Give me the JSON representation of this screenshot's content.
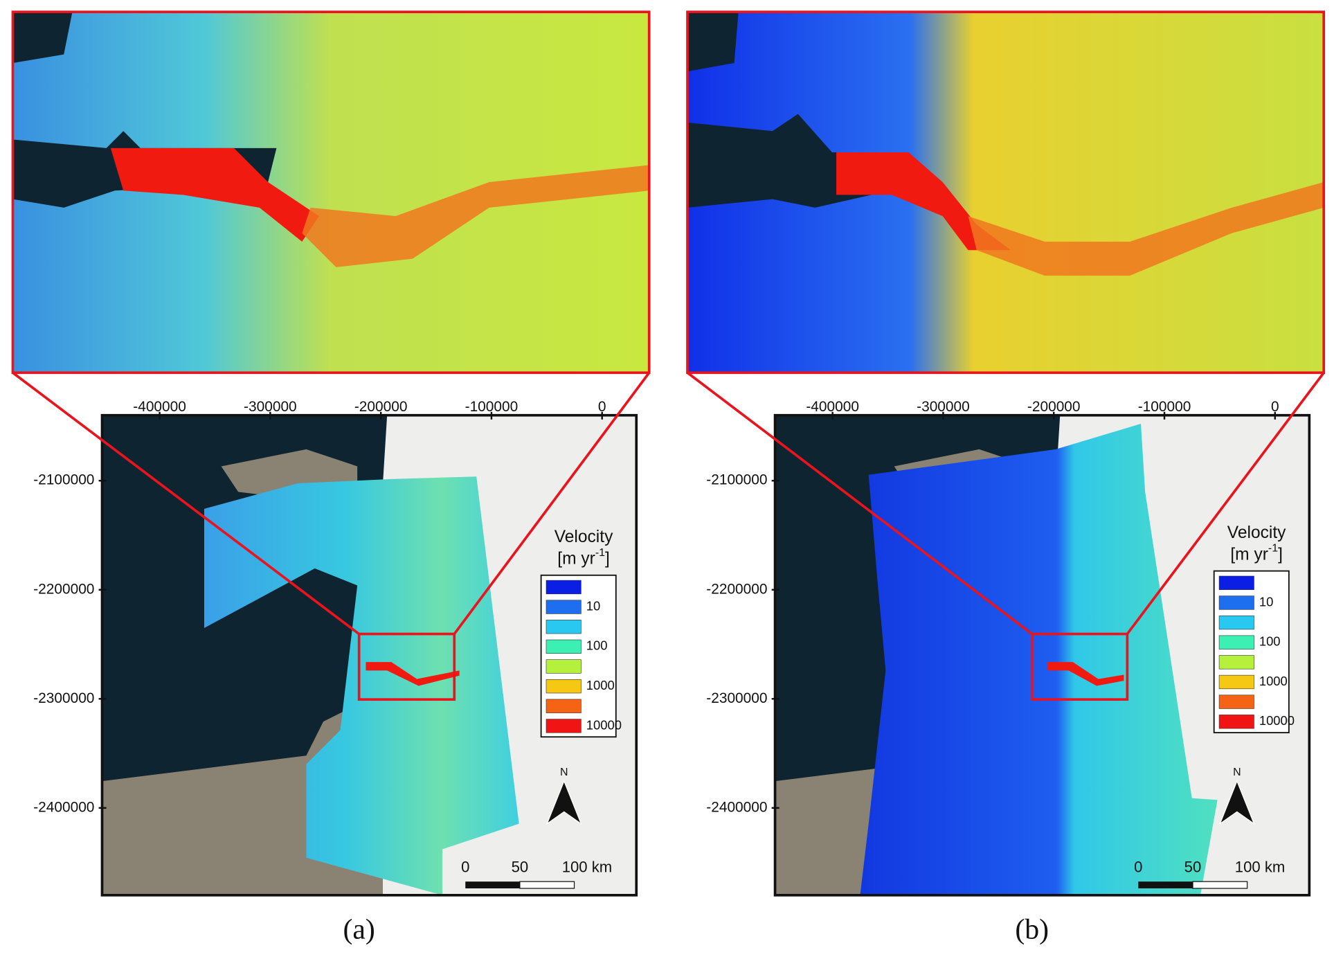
{
  "panels": [
    {
      "caption": "(a)",
      "map": {
        "xlim": [
          -452000,
          31000
        ],
        "ylim": [
          -2480000,
          -2040000
        ],
        "xticks": [
          -400000,
          -300000,
          -200000,
          -100000,
          0
        ],
        "yticks": [
          -2100000,
          -2200000,
          -2300000,
          -2400000
        ]
      },
      "legend": {
        "title": "Velocity",
        "unit": "[m yr",
        "unit_exponent": "-1",
        "unit_end": "]",
        "entries": [
          {
            "color": "#0a1ee6",
            "label": null
          },
          {
            "color": "#1e6ef0",
            "label": "10"
          },
          {
            "color": "#28c8f0",
            "label": null
          },
          {
            "color": "#3cf0b4",
            "label": "100"
          },
          {
            "color": "#b4f03c",
            "label": null
          },
          {
            "color": "#f5c814",
            "label": "1000"
          },
          {
            "color": "#f56414",
            "label": null
          },
          {
            "color": "#f01414",
            "label": "10000"
          }
        ]
      },
      "scale_bar": [
        "0",
        "50",
        "100 km"
      ],
      "north": "N"
    },
    {
      "caption": "(b)",
      "map": {
        "xlim": [
          -452000,
          31000
        ],
        "ylim": [
          -2480000,
          -2040000
        ],
        "xticks": [
          -400000,
          -300000,
          -200000,
          -100000,
          0
        ],
        "yticks": [
          -2100000,
          -2200000,
          -2300000,
          -2400000
        ]
      },
      "legend": {
        "title": "Velocity",
        "unit": "[m yr",
        "unit_exponent": "-1",
        "unit_end": "]",
        "entries": [
          {
            "color": "#0a1ee6",
            "label": null
          },
          {
            "color": "#1e6ef0",
            "label": "10"
          },
          {
            "color": "#28c8f0",
            "label": null
          },
          {
            "color": "#3cf0b4",
            "label": "100"
          },
          {
            "color": "#b4f03c",
            "label": null
          },
          {
            "color": "#f5c814",
            "label": "1000"
          },
          {
            "color": "#f56414",
            "label": null
          },
          {
            "color": "#f01414",
            "label": "10000"
          }
        ]
      },
      "scale_bar": [
        "0",
        "50",
        "100 km"
      ],
      "north": "N"
    }
  ]
}
